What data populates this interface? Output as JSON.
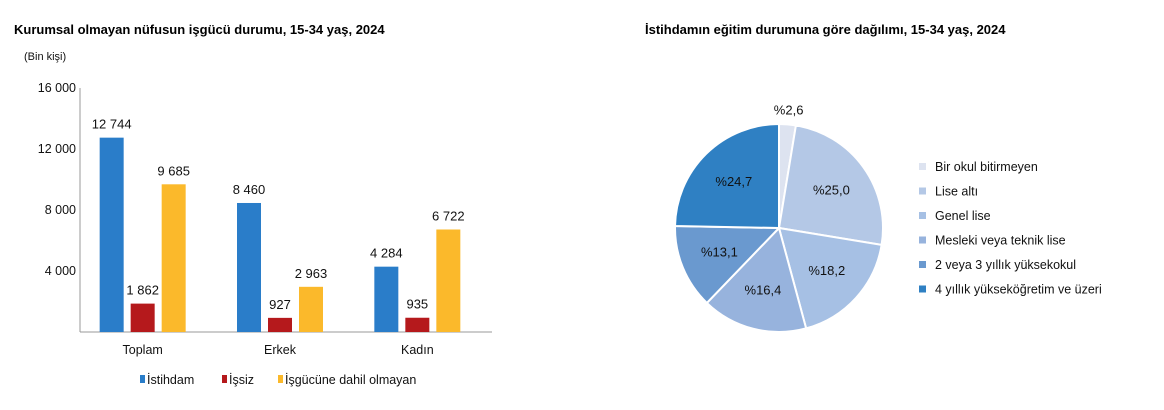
{
  "chart_data": [
    {
      "type": "bar",
      "title": "Kurumsal olmayan nüfusun işgücü durumu, 15-34 yaş, 2024",
      "unit_label": "(Bin kişi)",
      "categories": [
        "Toplam",
        "Erkek",
        "Kadın"
      ],
      "series": [
        {
          "name": "İstihdam",
          "color": "#2a7dc9",
          "values": [
            12744,
            8460,
            4284
          ],
          "labels": [
            "12 744",
            "8 460",
            "4 284"
          ]
        },
        {
          "name": "İşsiz",
          "color": "#b5191c",
          "values": [
            1862,
            927,
            935
          ],
          "labels": [
            "1 862",
            "927",
            "935"
          ]
        },
        {
          "name": "İşgücüne dahil olmayan",
          "color": "#fbb92b",
          "values": [
            9685,
            2963,
            6722
          ],
          "labels": [
            "9 685",
            "2 963",
            "6 722"
          ]
        }
      ],
      "ylim": [
        0,
        16000
      ],
      "yticks": [
        4000,
        8000,
        12000,
        16000
      ],
      "ytick_labels": [
        "4 000",
        "8 000",
        "12 000",
        "16 000"
      ],
      "grid": false,
      "legend": "bottom"
    },
    {
      "type": "pie",
      "title": "İstihdamın eğitim durumuna göre dağılımı, 15-34 yaş, 2024",
      "slices": [
        {
          "name": "Bir okul bitirmeyen",
          "value": 2.6,
          "label": "%2,6",
          "color": "#dde3f0"
        },
        {
          "name": "Lise altı",
          "value": 25.0,
          "label": "%25,0",
          "color": "#b4c8e6"
        },
        {
          "name": "Genel lise",
          "value": 18.2,
          "label": "%18,2",
          "color": "#a6c0e4"
        },
        {
          "name": "Mesleki veya teknik lise",
          "value": 16.4,
          "label": "%16,4",
          "color": "#97b3dd"
        },
        {
          "name": "2 veya 3 yıllık yüksekokul",
          "value": 13.1,
          "label": "%13,1",
          "color": "#6a99cf"
        },
        {
          "name": "4 yıllık yükseköğretim ve üzeri",
          "value": 24.7,
          "label": "%24,7",
          "color": "#2f80c3"
        }
      ],
      "legend": "right"
    }
  ]
}
